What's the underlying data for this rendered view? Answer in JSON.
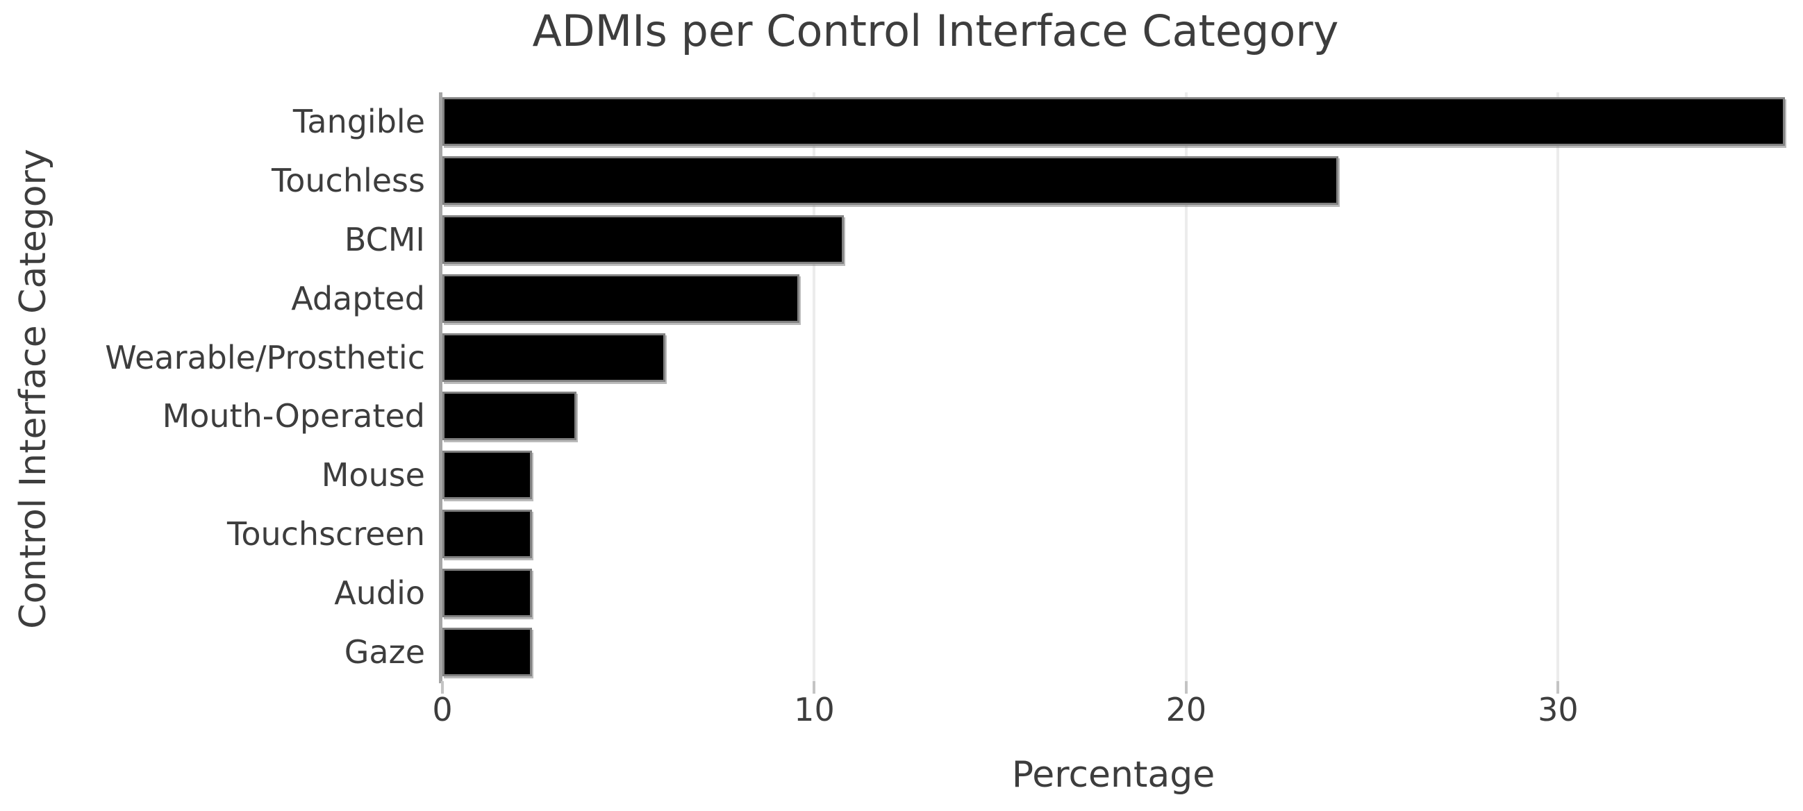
{
  "chart_data": {
    "type": "bar",
    "orientation": "horizontal",
    "title": "ADMIs per Control Interface Category",
    "xlabel": "Percentage",
    "ylabel": "Control Interface Category",
    "categories": [
      "Tangible",
      "Touchless",
      "BCMI",
      "Adapted",
      "Wearable/Prosthetic",
      "Mouth-Operated",
      "Mouse",
      "Touchscreen",
      "Audio",
      "Gaze"
    ],
    "values": [
      36.1,
      24.1,
      10.8,
      9.6,
      6.0,
      3.6,
      2.4,
      2.4,
      2.4,
      2.4
    ],
    "xticks": [
      0,
      10,
      20,
      30
    ],
    "xlim": [
      0,
      36.1
    ],
    "grid": "vertical light gridlines at x ticks",
    "legend": "none",
    "bar_color": "#000000",
    "bar_edge_color": "#828282",
    "grid_color": "#ececec",
    "axis_spine_color": "#a6a6a6",
    "text_color": "#3d3d3d",
    "background_color": "#ffffff"
  }
}
